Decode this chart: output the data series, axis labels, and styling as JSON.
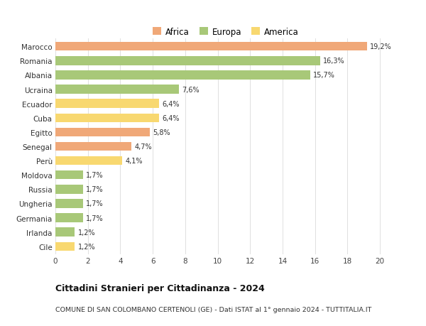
{
  "categories": [
    "Marocco",
    "Romania",
    "Albania",
    "Ucraina",
    "Ecuador",
    "Cuba",
    "Egitto",
    "Senegal",
    "Perù",
    "Moldova",
    "Russia",
    "Ungheria",
    "Germania",
    "Irlanda",
    "Cile"
  ],
  "values": [
    19.2,
    16.3,
    15.7,
    7.6,
    6.4,
    6.4,
    5.8,
    4.7,
    4.1,
    1.7,
    1.7,
    1.7,
    1.7,
    1.2,
    1.2
  ],
  "labels": [
    "19,2%",
    "16,3%",
    "15,7%",
    "7,6%",
    "6,4%",
    "6,4%",
    "5,8%",
    "4,7%",
    "4,1%",
    "1,7%",
    "1,7%",
    "1,7%",
    "1,7%",
    "1,2%",
    "1,2%"
  ],
  "colors": [
    "#f0a878",
    "#a8c878",
    "#a8c878",
    "#a8c878",
    "#f8d870",
    "#f8d870",
    "#f0a878",
    "#f0a878",
    "#f8d870",
    "#a8c878",
    "#a8c878",
    "#a8c878",
    "#a8c878",
    "#a8c878",
    "#f8d870"
  ],
  "legend_labels": [
    "Africa",
    "Europa",
    "America"
  ],
  "legend_colors": [
    "#f0a878",
    "#a8c878",
    "#f8d870"
  ],
  "title": "Cittadini Stranieri per Cittadinanza - 2024",
  "subtitle": "COMUNE DI SAN COLOMBANO CERTENOLI (GE) - Dati ISTAT al 1° gennaio 2024 - TUTTITALIA.IT",
  "xlim": [
    0,
    21
  ],
  "xticks": [
    0,
    2,
    4,
    6,
    8,
    10,
    12,
    14,
    16,
    18,
    20
  ],
  "bg_color": "#ffffff",
  "grid_color": "#e0e0e0"
}
